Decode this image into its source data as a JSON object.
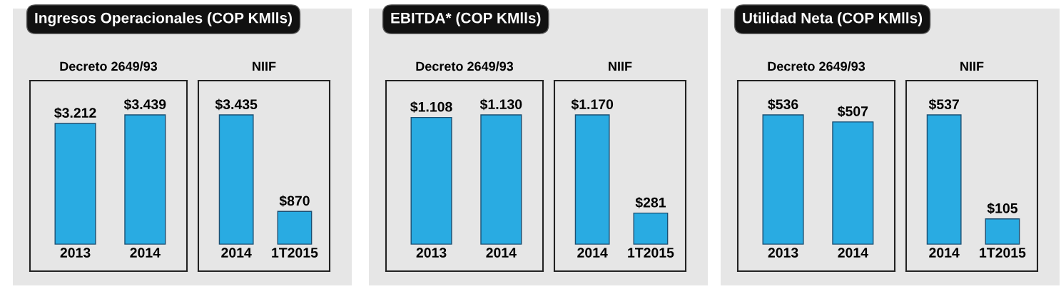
{
  "chart_data": [
    {
      "type": "bar",
      "title": "Ingresos Operacionales (COP KMlls)",
      "subtitle": "Decreto 2649/93",
      "categories": [
        "2013",
        "2014"
      ],
      "values": [
        3212,
        3439
      ],
      "color": "#29abe2",
      "value_labels": [
        "$3.212",
        "$3.439"
      ]
    },
    {
      "type": "bar",
      "subtitle": "NIIF",
      "categories": [
        "2014",
        "1T2015"
      ],
      "values": [
        3435,
        870
      ],
      "color": "#29abe2",
      "value_labels": [
        "$3.435",
        "$870"
      ]
    },
    {
      "type": "bar",
      "title": "EBITDA* (COP KMlls)",
      "subtitle": "Decreto 2649/93",
      "categories": [
        "2013",
        "2014"
      ],
      "values": [
        1108,
        1130
      ],
      "color": "#29abe2",
      "value_labels": [
        "$1.108",
        "$1.130"
      ]
    },
    {
      "type": "bar",
      "subtitle": "NIIF",
      "categories": [
        "2014",
        "1T2015"
      ],
      "values": [
        1170,
        281
      ],
      "color": "#29abe2",
      "value_labels": [
        "$1.170",
        "$281"
      ]
    },
    {
      "type": "bar",
      "title": "Utilidad Neta (COP KMlls)",
      "subtitle": "Decreto 2649/93",
      "categories": [
        "2013",
        "2014"
      ],
      "values": [
        536,
        507
      ],
      "color": "#29abe2",
      "value_labels": [
        "$536",
        "$507"
      ]
    },
    {
      "type": "bar",
      "subtitle": "NIIF",
      "categories": [
        "2014",
        "1T2015"
      ],
      "values": [
        537,
        105
      ],
      "color": "#29abe2",
      "value_labels": [
        "$537",
        "$105"
      ]
    }
  ]
}
